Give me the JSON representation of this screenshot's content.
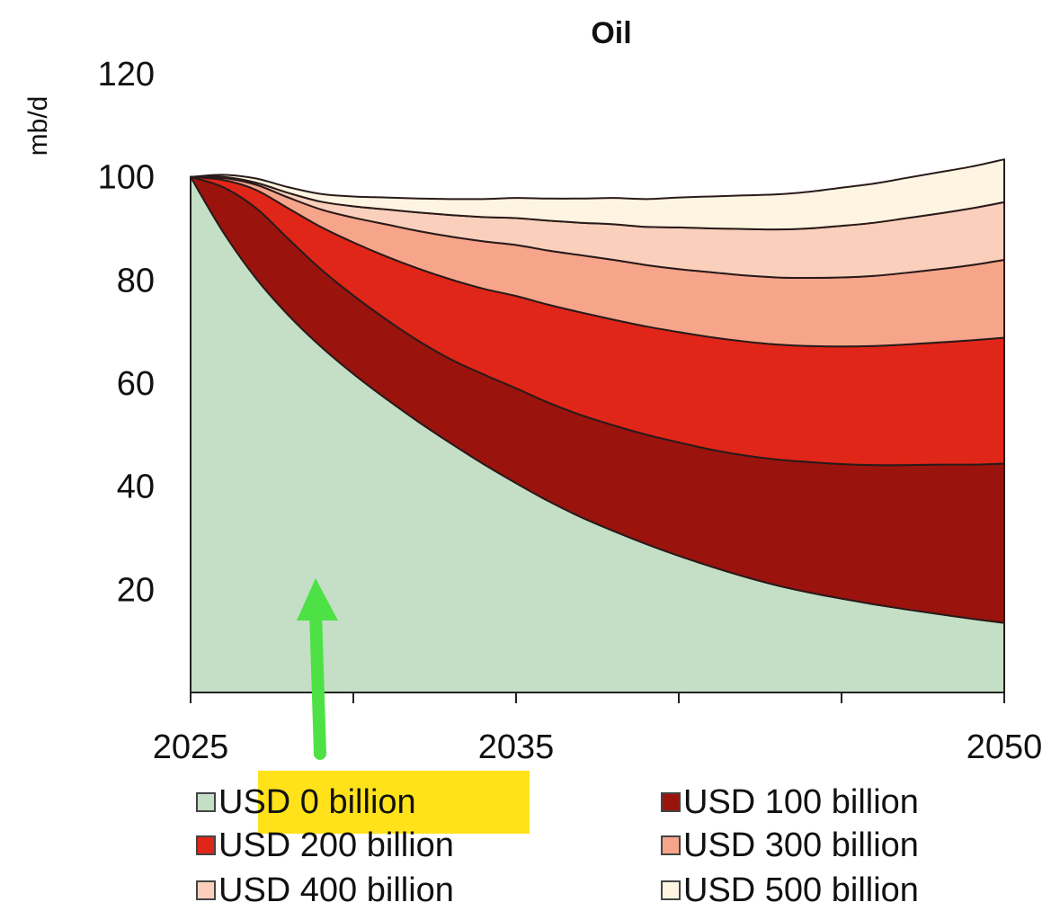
{
  "chart_data": {
    "type": "area",
    "stacked": true,
    "title": "Oil",
    "ylabel": "mb/d",
    "xlabel": "",
    "x": [
      2025,
      2026,
      2027,
      2028,
      2029,
      2030,
      2031,
      2032,
      2033,
      2034,
      2035,
      2036,
      2037,
      2038,
      2039,
      2040,
      2041,
      2042,
      2043,
      2044,
      2045,
      2046,
      2047,
      2048,
      2049,
      2050
    ],
    "xticks": [
      2025,
      2035,
      2050
    ],
    "xtick_labels": [
      "2025",
      "2035",
      "2050"
    ],
    "yticks": [
      20,
      40,
      60,
      80,
      100,
      120
    ],
    "ylim": [
      0,
      120
    ],
    "xlim": [
      2025,
      2050
    ],
    "series": [
      {
        "name": "USD 0 billion",
        "color": "#c4dfc6",
        "values": [
          100,
          89.3,
          80.4,
          73.2,
          67.1,
          61.8,
          57.0,
          52.5,
          48.3,
          44.3,
          40.6,
          37.1,
          34.0,
          31.3,
          28.8,
          26.5,
          24.4,
          22.5,
          20.8,
          19.4,
          18.2,
          17.1,
          16.1,
          15.2,
          14.3,
          13.5
        ]
      },
      {
        "name": "USD 100 billion",
        "color": "#9b130d",
        "values": [
          0,
          8.7,
          13.6,
          14.8,
          15.0,
          15.2,
          15.4,
          15.7,
          16.3,
          17.4,
          18.4,
          19.1,
          19.8,
          20.5,
          21.2,
          22.0,
          22.7,
          23.5,
          24.4,
          25.3,
          26.1,
          27.0,
          28.0,
          29.0,
          29.9,
          30.9
        ]
      },
      {
        "name": "USD 200 billion",
        "color": "#e02618",
        "values": [
          0,
          1.4,
          3.5,
          5.9,
          8.2,
          10.3,
          12.2,
          14.0,
          15.5,
          16.6,
          17.9,
          19.0,
          19.9,
          20.5,
          21.0,
          21.4,
          21.8,
          22.1,
          22.3,
          22.5,
          22.8,
          23.1,
          23.4,
          23.7,
          24.1,
          24.4
        ]
      },
      {
        "name": "USD 300 billion",
        "color": "#f6a58a",
        "values": [
          0,
          0.4,
          1.0,
          2.1,
          3.4,
          4.8,
          6.2,
          7.3,
          8.3,
          9.2,
          9.9,
          10.5,
          11.1,
          11.6,
          11.9,
          12.2,
          12.6,
          12.8,
          13.0,
          13.2,
          13.4,
          13.6,
          13.9,
          14.2,
          14.6,
          15.1
        ]
      },
      {
        "name": "USD 400 billion",
        "color": "#fad0bd",
        "values": [
          0,
          0.2,
          0.4,
          0.9,
          1.5,
          2.2,
          2.9,
          3.6,
          4.2,
          4.7,
          5.2,
          5.8,
          6.3,
          6.9,
          7.4,
          8.1,
          8.5,
          9.0,
          9.3,
          9.6,
          10.0,
          10.3,
          10.6,
          10.8,
          11.0,
          11.2
        ]
      },
      {
        "name": "USD 500 billion",
        "color": "#fdf5e1",
        "values": [
          0,
          0.4,
          0.8,
          1.1,
          1.5,
          1.9,
          2.3,
          2.7,
          3.1,
          3.5,
          3.9,
          4.3,
          4.7,
          5.1,
          5.4,
          5.8,
          6.2,
          6.5,
          6.8,
          7.1,
          7.4,
          7.6,
          7.8,
          8.0,
          8.1,
          8.3
        ]
      }
    ],
    "legend_position": "bottom",
    "grid": false
  }
}
